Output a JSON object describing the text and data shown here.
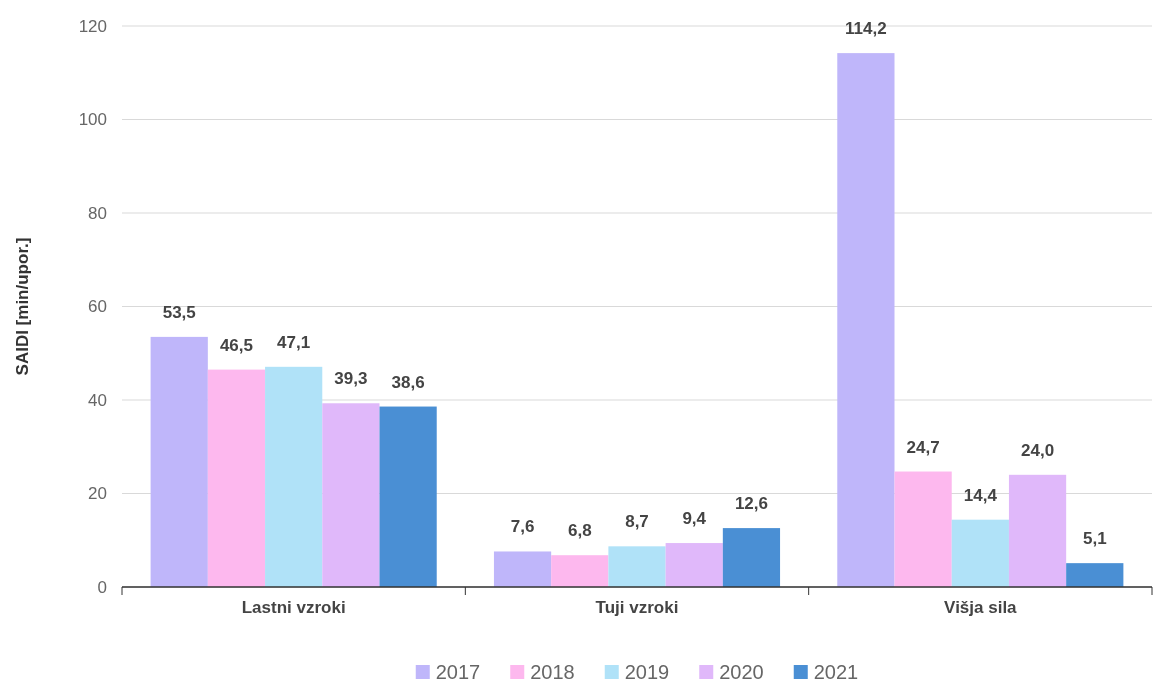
{
  "chart_data": {
    "type": "bar",
    "ylabel": "SAIDI [min/upor.]",
    "categories": [
      "Lastni vzroki",
      "Tuji vzroki",
      "Višja sila"
    ],
    "series": [
      {
        "name": "2017",
        "color": "#bfb6fa",
        "values": [
          53.5,
          7.6,
          114.2
        ],
        "value_labels": [
          "53,5",
          "7,6",
          "114,2"
        ]
      },
      {
        "name": "2018",
        "color": "#fdb8ee",
        "values": [
          46.5,
          6.8,
          24.7
        ],
        "value_labels": [
          "46,5",
          "6,8",
          "24,7"
        ]
      },
      {
        "name": "2019",
        "color": "#b0e2f8",
        "values": [
          47.1,
          8.7,
          14.4
        ],
        "value_labels": [
          "47,1",
          "8,7",
          "14,4"
        ]
      },
      {
        "name": "2020",
        "color": "#e0b8fa",
        "values": [
          39.3,
          9.4,
          24.0
        ],
        "value_labels": [
          "39,3",
          "9,4",
          "24,0"
        ]
      },
      {
        "name": "2021",
        "color": "#4a8fd4",
        "values": [
          38.6,
          12.6,
          5.1
        ],
        "value_labels": [
          "38,6",
          "12,6",
          "5,1"
        ]
      }
    ],
    "ylim": [
      0,
      120
    ],
    "yticks": [
      0,
      20,
      40,
      60,
      80,
      100,
      120
    ],
    "grid": "y",
    "legend": "bottom"
  }
}
